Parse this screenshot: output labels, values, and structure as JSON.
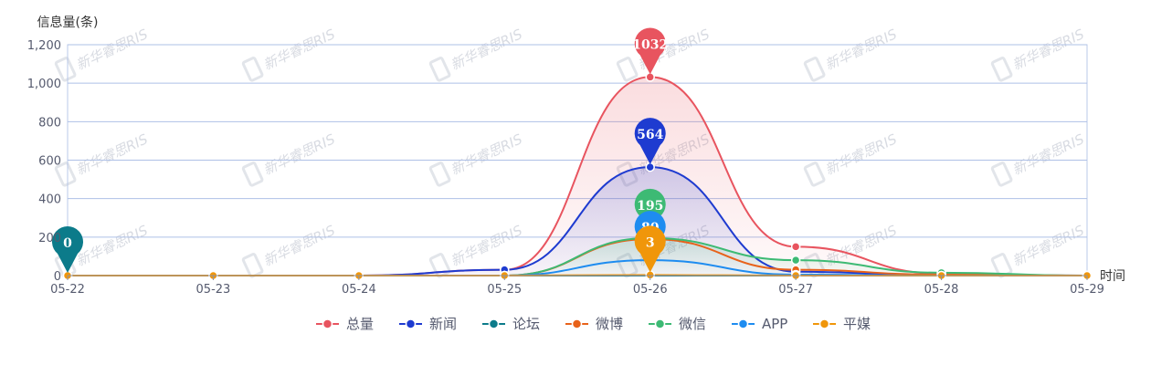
{
  "chart_data": {
    "type": "line",
    "ylabel": "信息量(条)",
    "xlabel": "时间",
    "categories": [
      "05-22",
      "05-23",
      "05-24",
      "05-25",
      "05-26",
      "05-27",
      "05-28",
      "05-29"
    ],
    "ylim": [
      0,
      1200
    ],
    "yticks": [
      0,
      200,
      400,
      600,
      800,
      1000,
      1200
    ],
    "ytick_labels": [
      "0",
      "200",
      "400",
      "600",
      "800",
      "1,000",
      "1,200"
    ],
    "grid": true,
    "legend_position": "bottom",
    "watermark": "新华睿思RIS",
    "series": [
      {
        "name": "总量",
        "color": "#e8545f",
        "values": [
          0,
          0,
          0,
          30,
          1032,
          150,
          10,
          0
        ],
        "area": true,
        "max_label": "1032"
      },
      {
        "name": "新闻",
        "color": "#1e3bd0",
        "values": [
          0,
          0,
          0,
          30,
          564,
          20,
          3,
          0
        ],
        "area": true,
        "max_label": "564"
      },
      {
        "name": "论坛",
        "color": "#0c7b8a",
        "values": [
          0,
          0,
          0,
          0,
          0,
          0,
          0,
          0
        ],
        "area": false,
        "max_label": "0"
      },
      {
        "name": "微博",
        "color": "#e8621a",
        "values": [
          0,
          0,
          0,
          0,
          190,
          30,
          5,
          0
        ],
        "area": false,
        "max_label": ""
      },
      {
        "name": "微信",
        "color": "#3dba74",
        "values": [
          0,
          0,
          0,
          0,
          195,
          80,
          15,
          0
        ],
        "area": true,
        "max_label": "195"
      },
      {
        "name": "APP",
        "color": "#1e8cf0",
        "values": [
          0,
          0,
          0,
          0,
          80,
          5,
          0,
          0
        ],
        "area": false,
        "max_label": "80"
      },
      {
        "name": "平媒",
        "color": "#f0960a",
        "values": [
          0,
          0,
          0,
          0,
          3,
          0,
          0,
          0
        ],
        "area": false,
        "max_label": "3"
      }
    ]
  }
}
